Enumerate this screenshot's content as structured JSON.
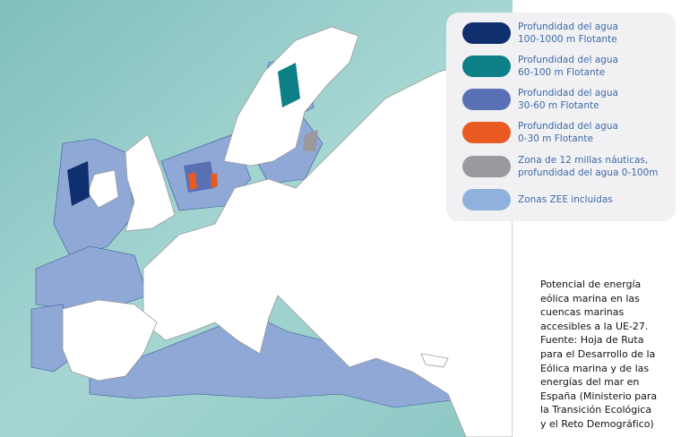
{
  "legend": {
    "items": [
      {
        "lines": [
          "Profundidad del agua",
          "100-1000 m Flotante"
        ],
        "color": "#0f2f6e"
      },
      {
        "lines": [
          "Profundidad del agua",
          "60-100 m Flotante"
        ],
        "color": "#0d7f86"
      },
      {
        "lines": [
          "Profundidad del agua",
          "30-60 m Flotante"
        ],
        "color": "#5a70b5"
      },
      {
        "lines": [
          "Profundidad del agua",
          "0-30 m Flotante"
        ],
        "color": "#e85a22"
      },
      {
        "lines": [
          "Zona de 12 millas náuticas,",
          "profundidad del agua 0-100m"
        ],
        "color": "#9a9a9e"
      },
      {
        "lines": [
          "Zonas ZEE incluidas"
        ],
        "color": "#8fb1db"
      }
    ]
  },
  "caption": {
    "lines": [
      "Potencial de energía",
      "eólica marina en las",
      "cuencas marinas",
      "accesibles a la UE-27.",
      "Fuente: Hoja de Ruta",
      "para el Desarrollo de la",
      "Eólica marina y de las",
      "energías del mar en",
      "España (Ministerio para",
      "la Transición Ecológica",
      "y el Reto Demográfico)"
    ]
  }
}
